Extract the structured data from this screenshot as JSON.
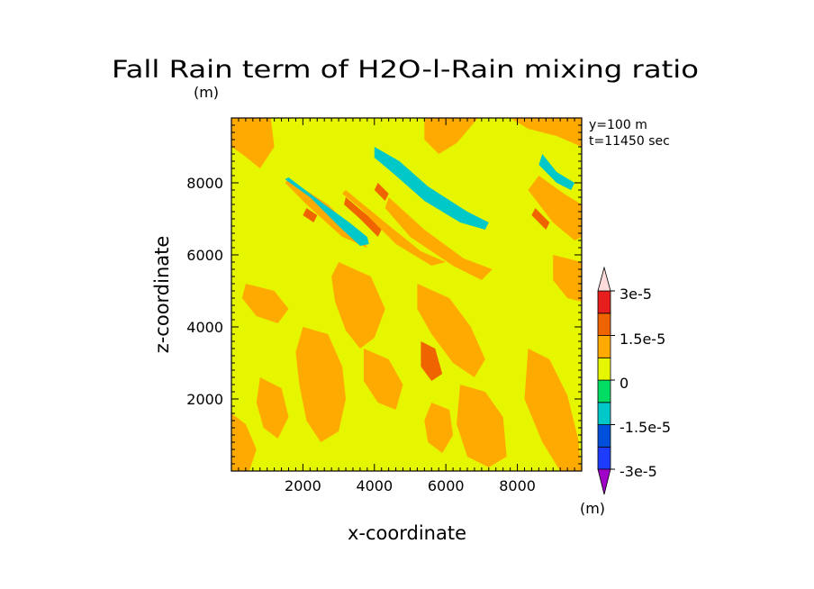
{
  "chart_data": {
    "type": "heatmap",
    "title": "Fall Rain term of H2O-l-Rain mixing ratio",
    "title_units": "(m)",
    "xlabel": "x-coordinate",
    "ylabel": "z-coordinate",
    "xlim": [
      0,
      9800
    ],
    "ylim": [
      0,
      9800
    ],
    "xticks": [
      2000,
      4000,
      6000,
      8000
    ],
    "yticks": [
      2000,
      4000,
      6000,
      8000
    ],
    "xtick_labels": [
      "2000",
      "4000",
      "6000",
      "8000"
    ],
    "ytick_labels": [
      "2000",
      "4000",
      "6000",
      "8000"
    ],
    "annotations": [
      "y=100 m",
      "t=11450 sec"
    ],
    "background_value": 1.5e-06,
    "colorbar": {
      "units": "(m)",
      "levels": [
        -3e-05,
        -2.25e-05,
        -1.5e-05,
        -7.5e-06,
        0,
        7.5e-06,
        1.5e-05,
        2.25e-05,
        3e-05
      ],
      "labels": [
        "3e-5",
        "1.5e-5",
        "0",
        "-1.5e-5",
        "-3e-5"
      ],
      "label_values": [
        3e-05,
        1.5e-05,
        0,
        -1.5e-05,
        -3e-05
      ],
      "colors_bottom_to_top": [
        "#a000c8",
        "#1e3cff",
        "#0050dc",
        "#00c8c8",
        "#00dc64",
        "#e6f500",
        "#ffaa00",
        "#f06400",
        "#e61e1e",
        "#f08080",
        "#ffdcdc"
      ]
    },
    "features": [
      {
        "level": 8e-06,
        "points": [
          [
            1600,
            8100
          ],
          [
            2700,
            7400
          ],
          [
            3700,
            6400
          ],
          [
            3800,
            6200
          ],
          [
            3100,
            6500
          ],
          [
            2100,
            7400
          ],
          [
            1500,
            8000
          ]
        ]
      },
      {
        "level": -8.5e-06,
        "points": [
          [
            1600,
            8150
          ],
          [
            2600,
            7400
          ],
          [
            3300,
            6900
          ],
          [
            3800,
            6500
          ],
          [
            3850,
            6300
          ],
          [
            3600,
            6250
          ],
          [
            3000,
            6800
          ],
          [
            2200,
            7600
          ],
          [
            1500,
            8100
          ]
        ]
      },
      {
        "level": 1.6e-05,
        "points": [
          [
            2100,
            7300
          ],
          [
            2400,
            7100
          ],
          [
            2300,
            6900
          ],
          [
            2000,
            7100
          ]
        ]
      },
      {
        "level": 8e-06,
        "points": [
          [
            3200,
            7800
          ],
          [
            4300,
            6900
          ],
          [
            5300,
            6100
          ],
          [
            6000,
            5800
          ],
          [
            5600,
            5700
          ],
          [
            4600,
            6300
          ],
          [
            3600,
            7300
          ],
          [
            3100,
            7700
          ]
        ]
      },
      {
        "level": 1.6e-05,
        "points": [
          [
            3200,
            7600
          ],
          [
            3800,
            7100
          ],
          [
            4200,
            6700
          ],
          [
            4100,
            6500
          ],
          [
            3600,
            7000
          ],
          [
            3150,
            7400
          ]
        ]
      },
      {
        "level": 1.6e-05,
        "points": [
          [
            4100,
            8000
          ],
          [
            4400,
            7700
          ],
          [
            4300,
            7500
          ],
          [
            4000,
            7800
          ]
        ]
      },
      {
        "level": -8.5e-06,
        "points": [
          [
            4000,
            9000
          ],
          [
            4700,
            8600
          ],
          [
            5500,
            7900
          ],
          [
            6600,
            7200
          ],
          [
            7200,
            6900
          ],
          [
            7100,
            6700
          ],
          [
            6400,
            6900
          ],
          [
            5400,
            7500
          ],
          [
            4600,
            8200
          ],
          [
            4000,
            8700
          ]
        ]
      },
      {
        "level": 8e-06,
        "points": [
          [
            4400,
            7600
          ],
          [
            5400,
            6700
          ],
          [
            6500,
            5900
          ],
          [
            7300,
            5600
          ],
          [
            7000,
            5300
          ],
          [
            6200,
            5700
          ],
          [
            5000,
            6500
          ],
          [
            4300,
            7300
          ]
        ]
      },
      {
        "level": -8.5e-06,
        "points": [
          [
            8700,
            8800
          ],
          [
            9100,
            8300
          ],
          [
            9600,
            8000
          ],
          [
            9500,
            7800
          ],
          [
            9100,
            8000
          ],
          [
            8600,
            8500
          ]
        ]
      },
      {
        "level": 8e-06,
        "points": [
          [
            8300,
            7800
          ],
          [
            9000,
            6900
          ],
          [
            9600,
            6400
          ],
          [
            9800,
            6500
          ],
          [
            9800,
            7400
          ],
          [
            9300,
            7700
          ],
          [
            8600,
            8200
          ]
        ]
      },
      {
        "level": 1.6e-05,
        "points": [
          [
            8500,
            7300
          ],
          [
            8900,
            6900
          ],
          [
            8800,
            6700
          ],
          [
            8400,
            7100
          ]
        ]
      },
      {
        "level": 8e-06,
        "points": [
          [
            0,
            9800
          ],
          [
            1100,
            9800
          ],
          [
            1200,
            9000
          ],
          [
            800,
            8400
          ],
          [
            300,
            8800
          ],
          [
            0,
            9000
          ]
        ]
      },
      {
        "level": 8e-06,
        "points": [
          [
            5400,
            9800
          ],
          [
            6900,
            9800
          ],
          [
            6300,
            9100
          ],
          [
            5800,
            8800
          ],
          [
            5400,
            9200
          ]
        ]
      },
      {
        "level": 8e-06,
        "points": [
          [
            7800,
            9800
          ],
          [
            9800,
            9800
          ],
          [
            9800,
            9000
          ],
          [
            9100,
            9300
          ],
          [
            8300,
            9500
          ]
        ]
      },
      {
        "level": 8e-06,
        "points": [
          [
            3000,
            5800
          ],
          [
            3900,
            5400
          ],
          [
            4300,
            4500
          ],
          [
            4000,
            3700
          ],
          [
            3600,
            3400
          ],
          [
            3200,
            3900
          ],
          [
            2900,
            4700
          ],
          [
            2800,
            5400
          ]
        ]
      },
      {
        "level": 8e-06,
        "points": [
          [
            2000,
            4000
          ],
          [
            2700,
            3800
          ],
          [
            3100,
            2900
          ],
          [
            3200,
            2000
          ],
          [
            3000,
            1100
          ],
          [
            2500,
            800
          ],
          [
            2100,
            1400
          ],
          [
            1900,
            2400
          ],
          [
            1800,
            3300
          ]
        ]
      },
      {
        "level": 8e-06,
        "points": [
          [
            3700,
            3400
          ],
          [
            4400,
            3100
          ],
          [
            4800,
            2400
          ],
          [
            4600,
            1700
          ],
          [
            4100,
            1900
          ],
          [
            3700,
            2500
          ]
        ]
      },
      {
        "level": 8e-06,
        "points": [
          [
            5200,
            5200
          ],
          [
            6100,
            4800
          ],
          [
            6700,
            4000
          ],
          [
            7100,
            3100
          ],
          [
            6800,
            2600
          ],
          [
            6200,
            3000
          ],
          [
            5600,
            3800
          ],
          [
            5200,
            4500
          ]
        ]
      },
      {
        "level": 8e-06,
        "points": [
          [
            6400,
            2400
          ],
          [
            7100,
            2200
          ],
          [
            7600,
            1500
          ],
          [
            7700,
            400
          ],
          [
            7200,
            100
          ],
          [
            6600,
            400
          ],
          [
            6300,
            1300
          ]
        ]
      },
      {
        "level": 8e-06,
        "points": [
          [
            8300,
            3400
          ],
          [
            8900,
            3100
          ],
          [
            9400,
            2100
          ],
          [
            9700,
            900
          ],
          [
            9800,
            0
          ],
          [
            9200,
            0
          ],
          [
            8700,
            800
          ],
          [
            8200,
            2000
          ]
        ]
      },
      {
        "level": 8e-06,
        "points": [
          [
            0,
            1600
          ],
          [
            400,
            1300
          ],
          [
            700,
            600
          ],
          [
            500,
            0
          ],
          [
            0,
            0
          ]
        ]
      },
      {
        "level": 8e-06,
        "points": [
          [
            400,
            5200
          ],
          [
            1200,
            5000
          ],
          [
            1600,
            4500
          ],
          [
            1300,
            4100
          ],
          [
            700,
            4300
          ],
          [
            300,
            4800
          ]
        ]
      },
      {
        "level": 8e-06,
        "points": [
          [
            800,
            2600
          ],
          [
            1400,
            2300
          ],
          [
            1600,
            1500
          ],
          [
            1300,
            900
          ],
          [
            900,
            1200
          ],
          [
            700,
            1900
          ]
        ]
      },
      {
        "level": 8e-06,
        "points": [
          [
            5600,
            1900
          ],
          [
            6100,
            1700
          ],
          [
            6200,
            1000
          ],
          [
            5900,
            500
          ],
          [
            5500,
            800
          ],
          [
            5400,
            1400
          ]
        ]
      },
      {
        "level": 8e-06,
        "points": [
          [
            9000,
            6000
          ],
          [
            9800,
            5800
          ],
          [
            9800,
            4700
          ],
          [
            9400,
            4800
          ],
          [
            9000,
            5300
          ]
        ]
      },
      {
        "level": 1.6e-05,
        "points": [
          [
            5300,
            3600
          ],
          [
            5700,
            3400
          ],
          [
            5900,
            2700
          ],
          [
            5600,
            2500
          ],
          [
            5300,
            2900
          ]
        ]
      }
    ]
  }
}
